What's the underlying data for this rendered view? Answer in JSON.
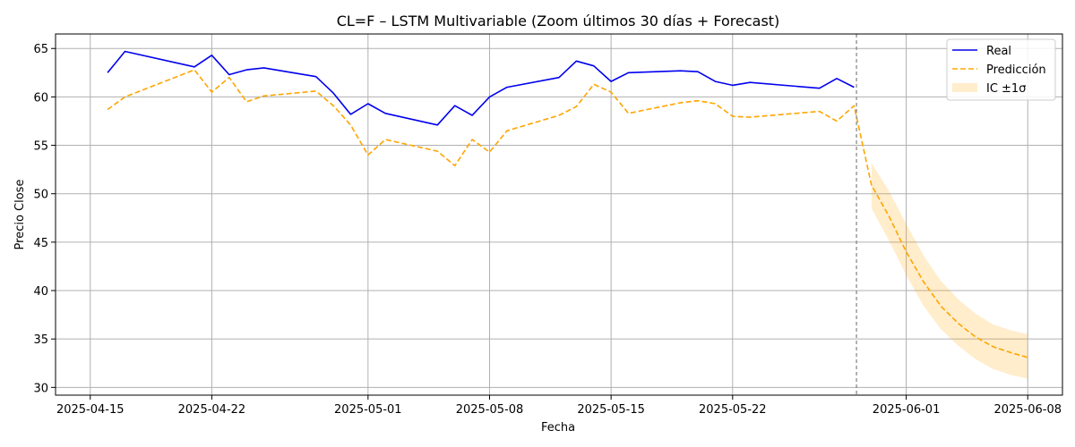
{
  "chart_data": {
    "type": "line",
    "title": "CL=F – LSTM Multivariable (Zoom últimos 30 días + Forecast)",
    "xlabel": "Fecha",
    "ylabel": "Precio Close",
    "xlim": [
      "2025-04-13",
      "2025-06-10"
    ],
    "ylim": [
      29.2,
      66.5
    ],
    "x_ticks": [
      "2025-04-15",
      "2025-04-22",
      "2025-05-01",
      "2025-05-08",
      "2025-05-15",
      "2025-05-22",
      "2025-06-01",
      "2025-06-08"
    ],
    "y_ticks": [
      30,
      35,
      40,
      45,
      50,
      55,
      60,
      65
    ],
    "grid": true,
    "legend_position": "top-right",
    "forecast_start": "2025-05-28",
    "colors": {
      "real": "#0000ee",
      "prediccion": "#ffa500",
      "ic": "#ffa500",
      "vline": "#808080"
    },
    "series": [
      {
        "name": "Real",
        "style": "solid",
        "points": [
          [
            "2025-04-16",
            62.5
          ],
          [
            "2025-04-17",
            64.7
          ],
          [
            "2025-04-21",
            63.1
          ],
          [
            "2025-04-22",
            64.3
          ],
          [
            "2025-04-23",
            62.3
          ],
          [
            "2025-04-24",
            62.8
          ],
          [
            "2025-04-25",
            63.0
          ],
          [
            "2025-04-28",
            62.1
          ],
          [
            "2025-04-29",
            60.4
          ],
          [
            "2025-04-30",
            58.2
          ],
          [
            "2025-05-01",
            59.3
          ],
          [
            "2025-05-02",
            58.3
          ],
          [
            "2025-05-05",
            57.1
          ],
          [
            "2025-05-06",
            59.1
          ],
          [
            "2025-05-07",
            58.1
          ],
          [
            "2025-05-08",
            60.0
          ],
          [
            "2025-05-09",
            61.0
          ],
          [
            "2025-05-12",
            62.0
          ],
          [
            "2025-05-13",
            63.7
          ],
          [
            "2025-05-14",
            63.2
          ],
          [
            "2025-05-15",
            61.6
          ],
          [
            "2025-05-16",
            62.5
          ],
          [
            "2025-05-19",
            62.7
          ],
          [
            "2025-05-20",
            62.6
          ],
          [
            "2025-05-21",
            61.6
          ],
          [
            "2025-05-22",
            61.2
          ],
          [
            "2025-05-23",
            61.5
          ],
          [
            "2025-05-27",
            60.9
          ],
          [
            "2025-05-28",
            61.9
          ],
          [
            "2025-05-29",
            61.0
          ]
        ]
      },
      {
        "name": "Predicción",
        "style": "dashed",
        "points": [
          [
            "2025-04-16",
            58.7
          ],
          [
            "2025-04-17",
            60.0
          ],
          [
            "2025-04-21",
            62.8
          ],
          [
            "2025-04-22",
            60.5
          ],
          [
            "2025-04-23",
            62.0
          ],
          [
            "2025-04-24",
            59.5
          ],
          [
            "2025-04-25",
            60.1
          ],
          [
            "2025-04-28",
            60.6
          ],
          [
            "2025-04-29",
            59.1
          ],
          [
            "2025-04-30",
            57.1
          ],
          [
            "2025-05-01",
            54.0
          ],
          [
            "2025-05-02",
            55.6
          ],
          [
            "2025-05-05",
            54.4
          ],
          [
            "2025-05-06",
            52.9
          ],
          [
            "2025-05-07",
            55.6
          ],
          [
            "2025-05-08",
            54.3
          ],
          [
            "2025-05-09",
            56.5
          ],
          [
            "2025-05-12",
            58.1
          ],
          [
            "2025-05-13",
            59.0
          ],
          [
            "2025-05-14",
            61.3
          ],
          [
            "2025-05-15",
            60.5
          ],
          [
            "2025-05-16",
            58.3
          ],
          [
            "2025-05-19",
            59.4
          ],
          [
            "2025-05-20",
            59.6
          ],
          [
            "2025-05-21",
            59.3
          ],
          [
            "2025-05-22",
            58.0
          ],
          [
            "2025-05-23",
            57.9
          ],
          [
            "2025-05-27",
            58.5
          ],
          [
            "2025-05-28",
            57.5
          ],
          [
            "2025-05-29",
            59.1
          ],
          [
            "2025-05-30",
            50.9
          ],
          [
            "2025-05-31",
            47.7
          ],
          [
            "2025-06-01",
            44.0
          ],
          [
            "2025-06-02",
            40.9
          ],
          [
            "2025-06-03",
            38.4
          ],
          [
            "2025-06-04",
            36.6
          ],
          [
            "2025-06-05",
            35.2
          ],
          [
            "2025-06-06",
            34.2
          ],
          [
            "2025-06-07",
            33.6
          ],
          [
            "2025-06-08",
            33.1
          ]
        ]
      }
    ],
    "band": {
      "name": "IC ±1σ",
      "points": [
        [
          "2025-05-30",
          48.5,
          53.2
        ],
        [
          "2025-05-31",
          45.2,
          50.3
        ],
        [
          "2025-06-01",
          41.6,
          46.9
        ],
        [
          "2025-06-02",
          38.4,
          43.6
        ],
        [
          "2025-06-03",
          36.0,
          41.0
        ],
        [
          "2025-06-04",
          34.3,
          39.1
        ],
        [
          "2025-06-05",
          32.9,
          37.6
        ],
        [
          "2025-06-06",
          31.9,
          36.5
        ],
        [
          "2025-06-07",
          31.3,
          35.9
        ],
        [
          "2025-06-08",
          30.9,
          35.5
        ]
      ]
    }
  }
}
